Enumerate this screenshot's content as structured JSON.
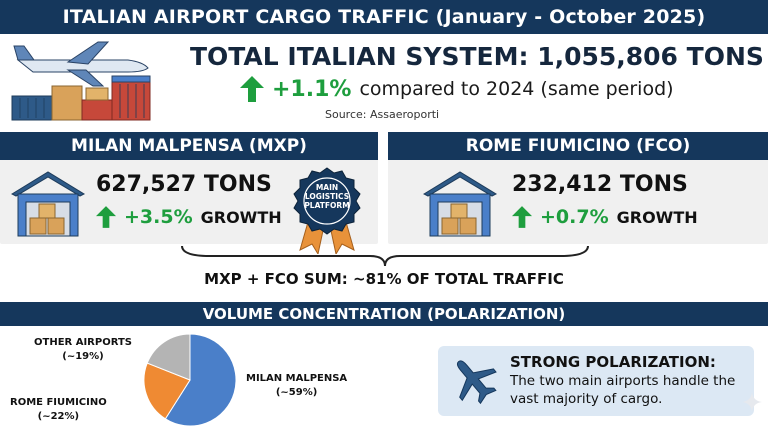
{
  "title": "ITALIAN AIRPORT CARGO TRAFFIC (January - October 2025)",
  "total": {
    "title": "TOTAL ITALIAN SYSTEM: 1,055,806 TONS",
    "change": "+1.1%",
    "change_text": "compared to 2024 (same period)",
    "source": "Source: Assaeroporti"
  },
  "mxp": {
    "header": "MILAN MALPENSA (MXP)",
    "tons": "627,527 TONS",
    "growth": "+3.5%",
    "growth_word": "GROWTH",
    "badge": [
      "MAIN",
      "LOGISTICS",
      "PLATFORM"
    ]
  },
  "fco": {
    "header": "ROME FIUMICINO (FCO)",
    "tons": "232,412 TONS",
    "growth": "+0.7%",
    "growth_word": "GROWTH"
  },
  "sum_text": "MXP + FCO SUM: ~81% OF TOTAL TRAFFIC",
  "volume_header": "VOLUME CONCENTRATION (POLARIZATION)",
  "chart_data": {
    "type": "pie",
    "slices": [
      {
        "label": "MILAN MALPENSA",
        "value_label": "(~59%)",
        "value": 59,
        "color": "#4a7fc9"
      },
      {
        "label": "ROME FIUMICINO",
        "value_label": "(~22%)",
        "value": 22,
        "color": "#ef8a33"
      },
      {
        "label": "OTHER AIRPORTS",
        "value_label": "(~19%)",
        "value": 19,
        "color": "#b4b4b4"
      }
    ]
  },
  "callout": {
    "title": "STRONG POLARIZATION:",
    "body": "The two main airports handle the vast majority of cargo."
  },
  "icons": [
    "cargo-plane-icon",
    "warehouse-icon",
    "badge-ribbon-icon",
    "up-arrow-icon",
    "airplane-icon",
    "sparkle-icon"
  ],
  "colors": {
    "navy": "#15375c",
    "green": "#1e9e3e",
    "panel": "#f0f0f0",
    "callout": "#dce8f4"
  }
}
